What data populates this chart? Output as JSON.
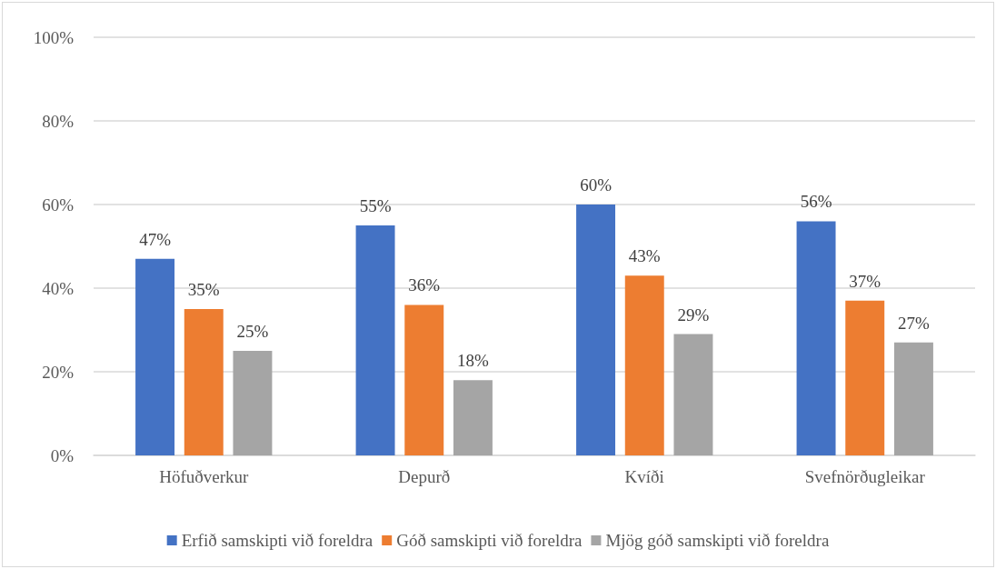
{
  "chart_data": {
    "type": "bar",
    "categories": [
      "Höfuðverkur",
      "Depurð",
      "Kvíði",
      "Svefnörðugleikar"
    ],
    "series": [
      {
        "name": "Erfið samskipti við foreldra",
        "color": "#4472c4",
        "values": [
          47,
          55,
          60,
          56
        ],
        "value_labels": [
          "47%",
          "55%",
          "60%",
          "56%"
        ]
      },
      {
        "name": "Góð samskipti við foreldra",
        "color": "#ed7d31",
        "values": [
          35,
          36,
          43,
          37
        ],
        "value_labels": [
          "35%",
          "36%",
          "43%",
          "37%"
        ]
      },
      {
        "name": "Mjög góð samskipti við foreldra",
        "color": "#a5a5a5",
        "values": [
          25,
          18,
          29,
          27
        ],
        "value_labels": [
          "25%",
          "18%",
          "29%",
          "27%"
        ]
      }
    ],
    "ylim": [
      0,
      100
    ],
    "yticks": [
      {
        "value": 0,
        "label": "0%"
      },
      {
        "value": 20,
        "label": "20%"
      },
      {
        "value": 40,
        "label": "40%"
      },
      {
        "value": 60,
        "label": "60%"
      },
      {
        "value": 80,
        "label": "80%"
      },
      {
        "value": 100,
        "label": "100%"
      }
    ],
    "grid": "y",
    "legend": "bottom"
  }
}
